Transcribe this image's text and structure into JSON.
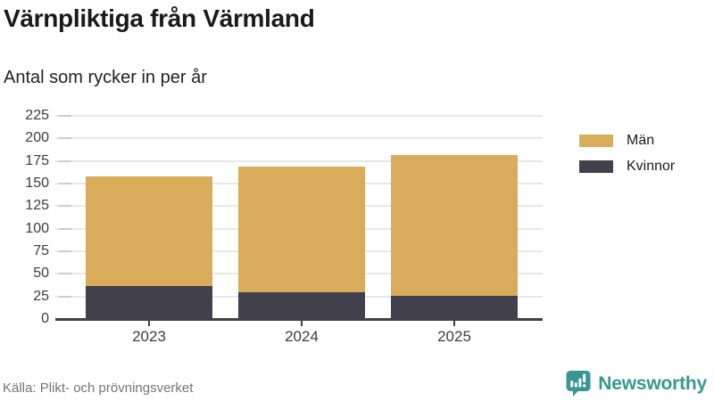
{
  "header": {
    "title": "Värnpliktiga från Värmland",
    "subtitle": "Antal som rycker in per år"
  },
  "chart_data": {
    "type": "bar",
    "stacked": true,
    "title": "Värnpliktiga från Värmland",
    "subtitle": "Antal som rycker in per år",
    "categories": [
      "2023",
      "2024",
      "2025"
    ],
    "series": [
      {
        "name": "Män",
        "color": "#d8ac5a",
        "values": [
          121,
          139,
          156
        ]
      },
      {
        "name": "Kvinnor",
        "color": "#42404c",
        "values": [
          37,
          30,
          26
        ]
      }
    ],
    "totals": [
      158,
      169,
      182
    ],
    "y_ticks": [
      0,
      25,
      50,
      75,
      100,
      125,
      150,
      175,
      200,
      225
    ],
    "ylim": [
      0,
      233
    ],
    "xlabel": "",
    "ylabel": "",
    "grid": true,
    "legend_position": "right"
  },
  "footer": {
    "source": "Källa: Plikt- och prövningsverket",
    "brand": "Newsworthy"
  },
  "colors": {
    "men": "#d8ac5a",
    "women": "#42404c",
    "axis": "#42404c",
    "gridline": "#e8e8e8",
    "brand_teal": "#389792",
    "source_text": "#757575"
  }
}
